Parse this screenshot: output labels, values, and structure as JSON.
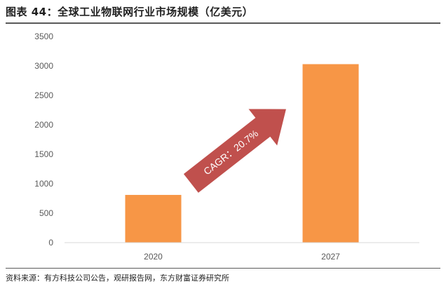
{
  "figure": {
    "title": "图表 44：全球工业物联网行业市场规模（亿美元）",
    "source": "资料来源：有方科技公司公告，观研报告网，东方财富证券研究所"
  },
  "chart_data": {
    "type": "bar",
    "categories": [
      "2020",
      "2027"
    ],
    "values": [
      810,
      3030
    ],
    "ylim": [
      0,
      3500
    ],
    "yticks": [
      0,
      500,
      1000,
      1500,
      2000,
      2500,
      3000,
      3500
    ],
    "grid": false,
    "bar_color": "#F79646",
    "annotation": {
      "text": "CAGR：20.7%",
      "arrow_color": "#C0504D"
    }
  }
}
